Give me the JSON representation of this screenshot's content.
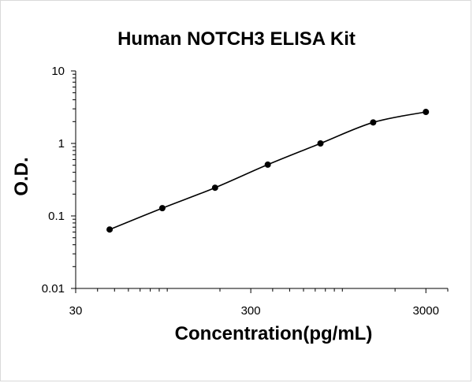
{
  "chart_data": {
    "type": "scatter",
    "title": "Human NOTCH3 ELISA Kit",
    "xlabel": "Concentration(pg/mL)",
    "ylabel": "O.D.",
    "x_scale": "log",
    "y_scale": "log",
    "xlim": [
      30,
      4000
    ],
    "ylim": [
      0.01,
      10
    ],
    "x_ticks": [
      {
        "value": 30,
        "label": "30"
      },
      {
        "value": 300,
        "label": "300"
      },
      {
        "value": 3000,
        "label": "3000"
      }
    ],
    "y_ticks": [
      {
        "value": 0.01,
        "label": "0.01"
      },
      {
        "value": 0.1,
        "label": "0.1"
      },
      {
        "value": 1,
        "label": "1"
      },
      {
        "value": 10,
        "label": "10"
      }
    ],
    "grid": false,
    "legend": "none",
    "fit_curve": true,
    "series": [
      {
        "x": [
          46.88,
          93.75,
          187.5,
          375,
          750,
          1500,
          3000
        ],
        "y": [
          0.065,
          0.128,
          0.245,
          0.51,
          1.0,
          1.95,
          2.72
        ]
      }
    ],
    "colors": {
      "marker": "#000000",
      "line": "#000000",
      "axis": "#000000"
    }
  }
}
